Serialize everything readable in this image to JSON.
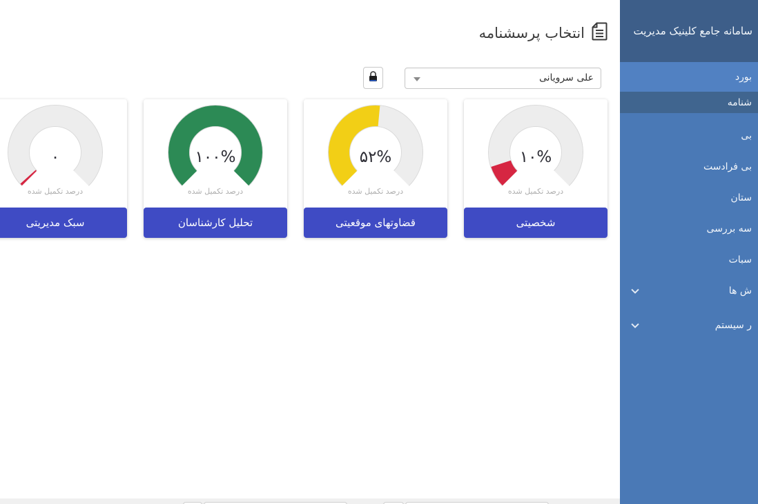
{
  "sidebar": {
    "title": "سامانه جامع کلینیک مدیریت",
    "items": [
      {
        "label": "بورد",
        "state": "highlight",
        "chevron": false
      },
      {
        "label": "شنامه",
        "state": "active",
        "chevron": false
      },
      {
        "label": "بی",
        "state": "normal",
        "chevron": false
      },
      {
        "label": "بی فرادست",
        "state": "normal",
        "chevron": false
      },
      {
        "label": "ستان",
        "state": "normal",
        "chevron": false
      },
      {
        "label": "سه بررسی",
        "state": "normal",
        "chevron": false
      },
      {
        "label": "سبات",
        "state": "normal",
        "chevron": false
      },
      {
        "label": "ش ها",
        "state": "normal",
        "chevron": true
      },
      {
        "label": "ر سیستم",
        "state": "normal",
        "chevron": true
      }
    ],
    "colors": {
      "background": "#4A79B6",
      "header_background": "#3D5E89",
      "highlight_row": "#5181C2",
      "active_row": "#40658F"
    }
  },
  "header": {
    "title": "انتخاب پرسشنامه",
    "icon": "document-icon"
  },
  "controls": {
    "user_select_value": "علی سرویانی",
    "lock_button_icon": "lock-icon"
  },
  "cards": [
    {
      "label": "شخصیتی",
      "percent": 10,
      "value_display": "۱۰%",
      "sublabel": "درصد تکمیل شده",
      "color": "#D62642"
    },
    {
      "label": "قضاوتهای موقعیتی",
      "percent": 52,
      "value_display": "۵۲%",
      "sublabel": "درصد تکمیل شده",
      "color": "#F2CF16"
    },
    {
      "label": "تحلیل کارشناسان",
      "percent": 100,
      "value_display": "۱۰۰%",
      "sublabel": "درصد تکمیل شده",
      "color": "#2C8A55"
    },
    {
      "label": "سبک مدیریتی",
      "percent": 0,
      "value_display": "۰",
      "sublabel": "درصد تکمیل شده",
      "color": "#D62642"
    }
  ],
  "accent_colors": {
    "card_footer": "#3F4BC4",
    "gauge_track": "#EDEDED"
  }
}
